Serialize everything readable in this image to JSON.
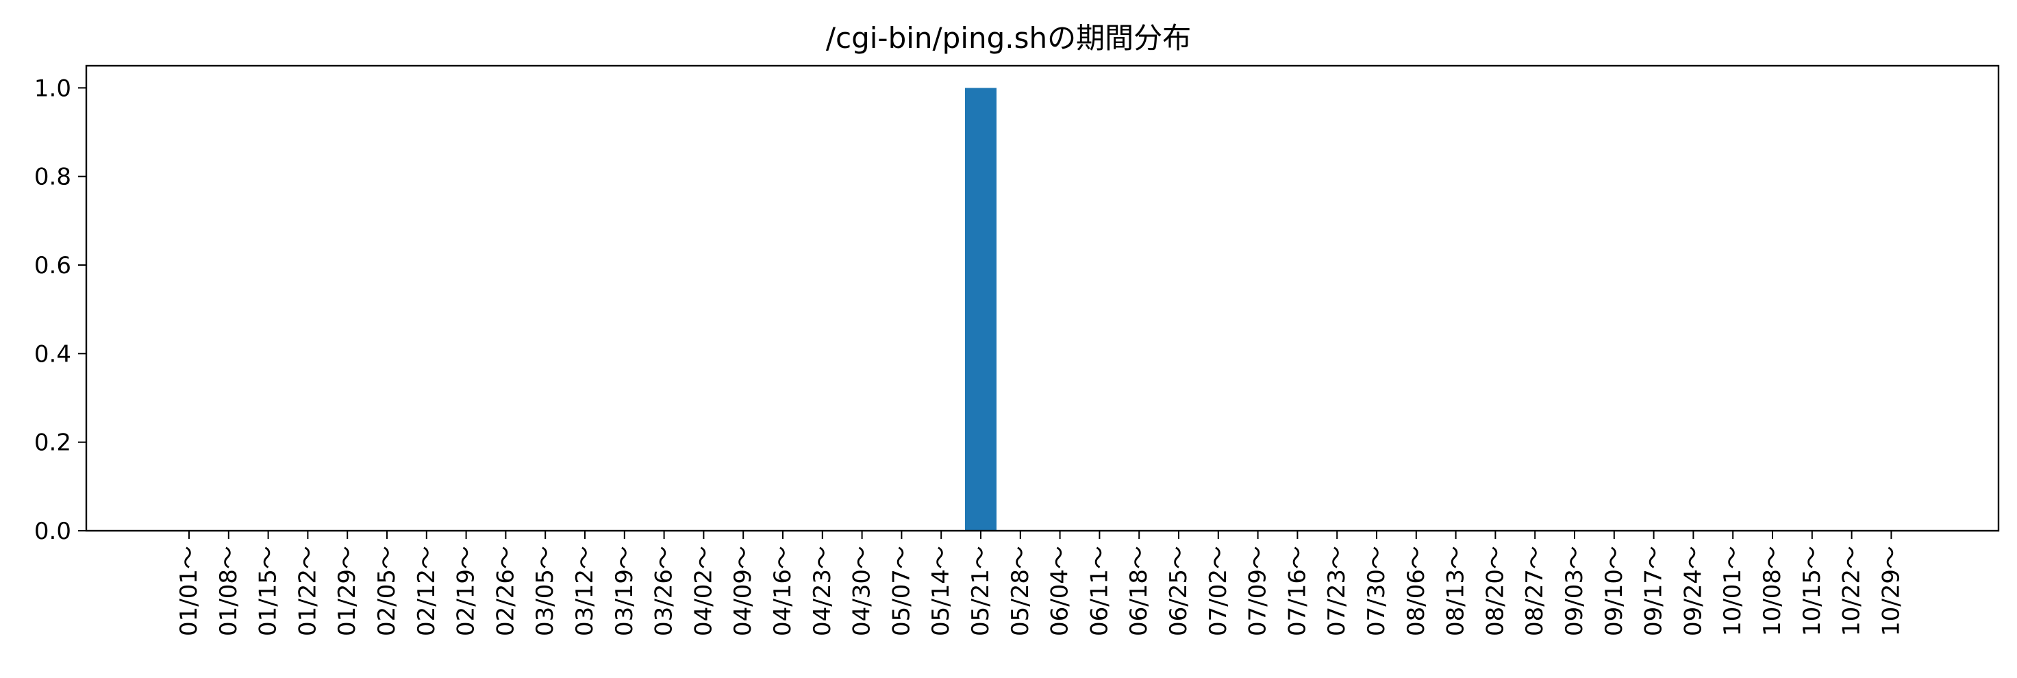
{
  "chart_data": {
    "type": "bar",
    "title": "/cgi-bin/ping.shの期間分布",
    "xlabel": "",
    "ylabel": "",
    "ylim": [
      0,
      1.05
    ],
    "yticks": [
      "0.0",
      "0.2",
      "0.4",
      "0.6",
      "0.8",
      "1.0"
    ],
    "ytick_values": [
      0,
      0.2,
      0.4,
      0.6,
      0.8,
      1.0
    ],
    "grid": false,
    "legend": "none",
    "bar_color": "#1f77b4",
    "categories": [
      "01/01～",
      "01/08～",
      "01/15～",
      "01/22～",
      "01/29～",
      "02/05～",
      "02/12～",
      "02/19～",
      "02/26～",
      "03/05～",
      "03/12～",
      "03/19～",
      "03/26～",
      "04/02～",
      "04/09～",
      "04/16～",
      "04/23～",
      "04/30～",
      "05/07～",
      "05/14～",
      "05/21～",
      "05/28～",
      "06/04～",
      "06/11～",
      "06/18～",
      "06/25～",
      "07/02～",
      "07/09～",
      "07/16～",
      "07/23～",
      "07/30～",
      "08/06～",
      "08/13～",
      "08/20～",
      "08/27～",
      "09/03～",
      "09/10～",
      "09/17～",
      "09/24～",
      "10/01～",
      "10/08～",
      "10/15～",
      "10/22～",
      "10/29～"
    ],
    "values": [
      0,
      0,
      0,
      0,
      0,
      0,
      0,
      0,
      0,
      0,
      0,
      0,
      0,
      0,
      0,
      0,
      0,
      0,
      0,
      0,
      1,
      0,
      0,
      0,
      0,
      0,
      0,
      0,
      0,
      0,
      0,
      0,
      0,
      0,
      0,
      0,
      0,
      0,
      0,
      0,
      0,
      0,
      0,
      0
    ]
  }
}
